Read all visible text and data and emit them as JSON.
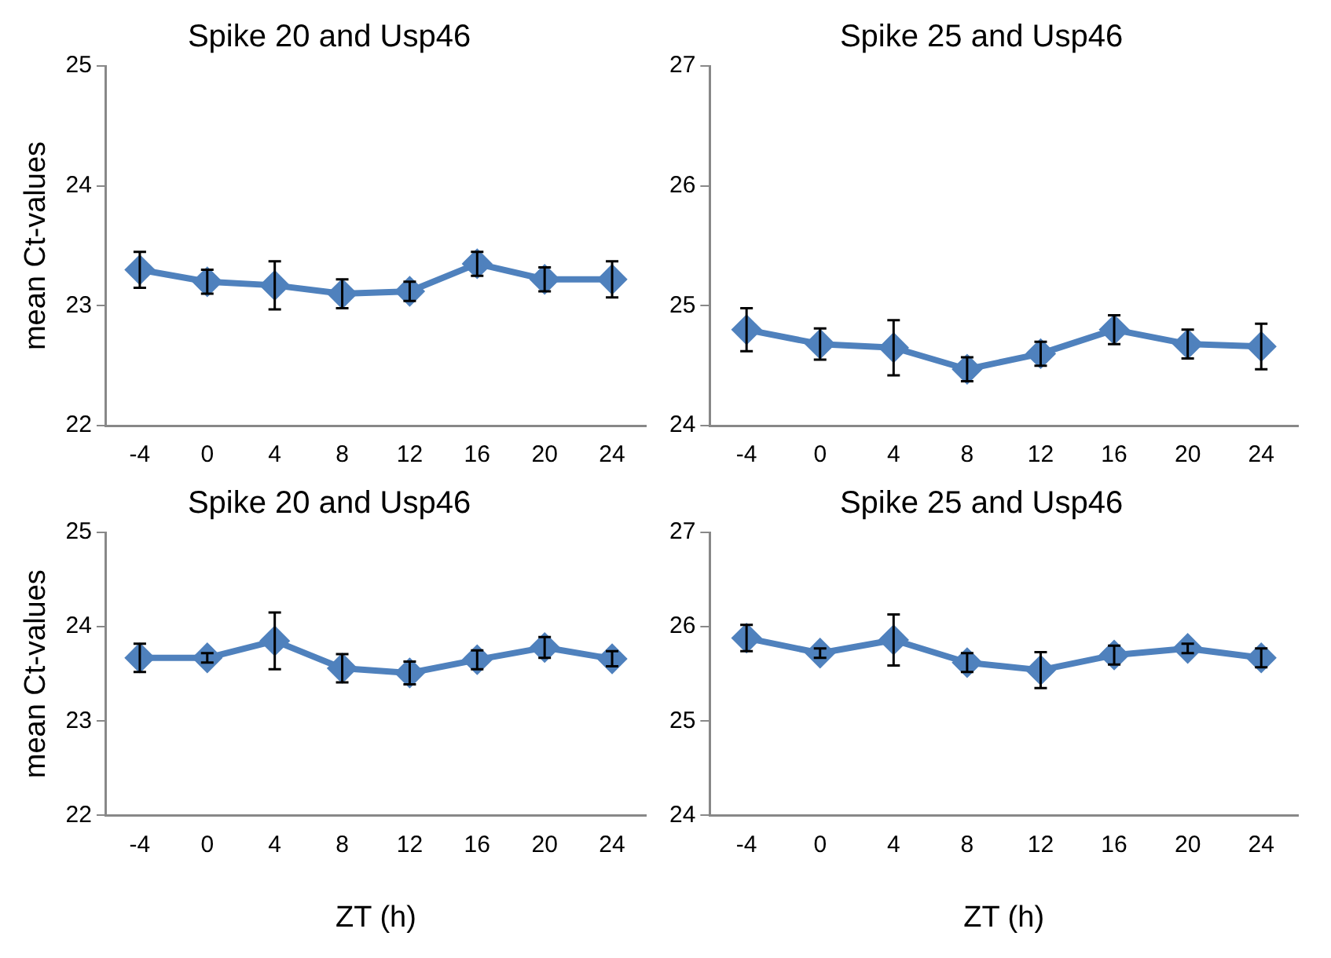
{
  "chart_data": [
    {
      "type": "line",
      "title": "Spike 20 and Usp46",
      "ylabel": "mean Ct-values",
      "categories": [
        "-4",
        "0",
        "4",
        "8",
        "12",
        "16",
        "20",
        "24"
      ],
      "ylim": [
        22,
        25
      ],
      "yticks": [
        22,
        23,
        24,
        25
      ],
      "grid": false,
      "legend": false,
      "marker": "diamond",
      "line_style": "solid",
      "series": [
        {
          "color": "#4f81bd",
          "values": [
            23.3,
            23.2,
            23.17,
            23.1,
            23.12,
            23.35,
            23.22,
            23.22
          ],
          "errors": [
            0.15,
            0.1,
            0.2,
            0.12,
            0.08,
            0.1,
            0.1,
            0.15
          ]
        }
      ]
    },
    {
      "type": "line",
      "title": "Spike 25 and Usp46",
      "categories": [
        "-4",
        "0",
        "4",
        "8",
        "12",
        "16",
        "20",
        "24"
      ],
      "ylim": [
        24,
        27
      ],
      "yticks": [
        24,
        25,
        26,
        27
      ],
      "grid": false,
      "legend": false,
      "marker": "diamond",
      "line_style": "solid",
      "series": [
        {
          "color": "#4f81bd",
          "values": [
            24.8,
            24.68,
            24.65,
            24.47,
            24.6,
            24.8,
            24.68,
            24.66
          ],
          "errors": [
            0.18,
            0.13,
            0.23,
            0.1,
            0.1,
            0.12,
            0.12,
            0.19
          ]
        }
      ]
    },
    {
      "type": "line",
      "title": "Spike 20 and Usp46",
      "ylabel": "mean Ct-values",
      "xlabel": "ZT (h)",
      "categories": [
        "-4",
        "0",
        "4",
        "8",
        "12",
        "16",
        "20",
        "24"
      ],
      "ylim": [
        22,
        25
      ],
      "yticks": [
        22,
        23,
        24,
        25
      ],
      "grid": false,
      "legend": false,
      "marker": "diamond",
      "line_style": "solid",
      "series": [
        {
          "color": "#4f81bd",
          "values": [
            23.67,
            23.67,
            23.85,
            23.56,
            23.51,
            23.65,
            23.78,
            23.66
          ],
          "errors": [
            0.15,
            0.05,
            0.3,
            0.15,
            0.12,
            0.1,
            0.11,
            0.08
          ]
        }
      ]
    },
    {
      "type": "line",
      "title": "Spike 25 and Usp46",
      "xlabel": "ZT (h)",
      "categories": [
        "-4",
        "0",
        "4",
        "8",
        "12",
        "16",
        "20",
        "24"
      ],
      "ylim": [
        24,
        27
      ],
      "yticks": [
        24,
        25,
        26,
        27
      ],
      "grid": false,
      "legend": false,
      "marker": "diamond",
      "line_style": "solid",
      "series": [
        {
          "color": "#4f81bd",
          "values": [
            25.88,
            25.72,
            25.86,
            25.62,
            25.54,
            25.7,
            25.77,
            25.67
          ],
          "errors": [
            0.14,
            0.05,
            0.27,
            0.1,
            0.19,
            0.1,
            0.05,
            0.1
          ]
        }
      ]
    }
  ]
}
